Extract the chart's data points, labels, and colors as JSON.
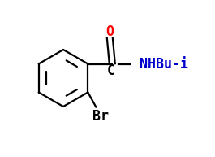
{
  "bg_color": "#ffffff",
  "line_color": "#000000",
  "O_color": "#ff0000",
  "N_color": "#0000cd",
  "label_O": "O",
  "label_C": "C",
  "label_NHBui": "NHBu-i",
  "label_Br": "Br",
  "figsize": [
    2.65,
    1.93
  ],
  "dpi": 100
}
